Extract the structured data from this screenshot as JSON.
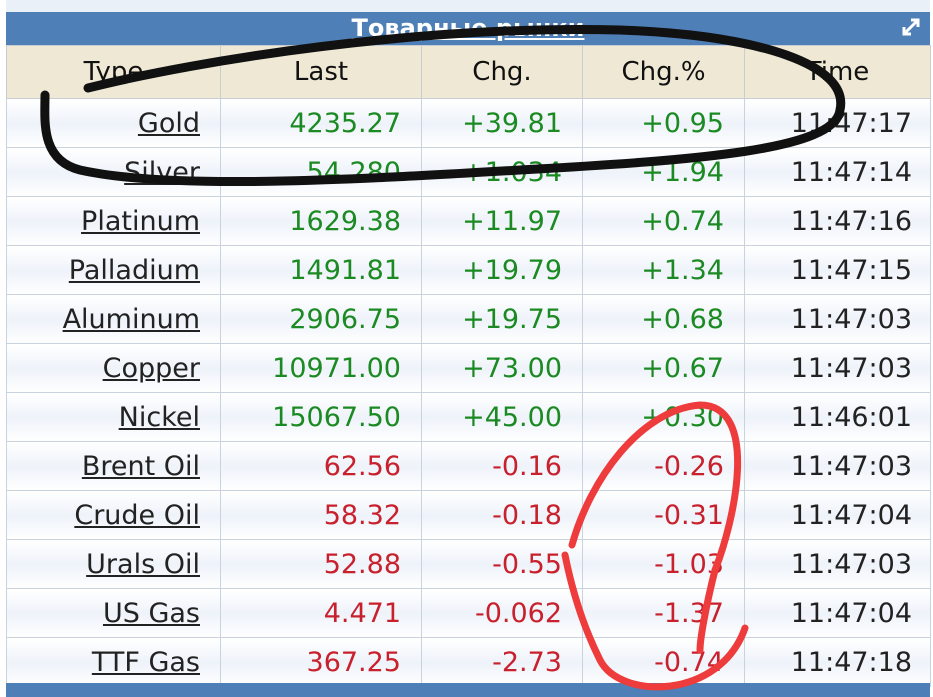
{
  "header": {
    "title": "Товарные рынки"
  },
  "table": {
    "columns": [
      "Type",
      "Last",
      "Chg.",
      "Chg.%",
      "Time"
    ],
    "rows": [
      {
        "type": "Gold",
        "last": "4235.27",
        "chg": "+39.81",
        "chg_pct": "+0.95",
        "time": "11:47:17",
        "color": "#1b8a22"
      },
      {
        "type": "Silver",
        "last": "54.280",
        "chg": "+1.034",
        "chg_pct": "+1.94",
        "time": "11:47:14",
        "color": "#1b8a22"
      },
      {
        "type": "Platinum",
        "last": "1629.38",
        "chg": "+11.97",
        "chg_pct": "+0.74",
        "time": "11:47:16",
        "color": "#1b8a22"
      },
      {
        "type": "Palladium",
        "last": "1491.81",
        "chg": "+19.79",
        "chg_pct": "+1.34",
        "time": "11:47:15",
        "color": "#1b8a22"
      },
      {
        "type": "Aluminum",
        "last": "2906.75",
        "chg": "+19.75",
        "chg_pct": "+0.68",
        "time": "11:47:03",
        "color": "#1b8a22"
      },
      {
        "type": "Copper",
        "last": "10971.00",
        "chg": "+73.00",
        "chg_pct": "+0.67",
        "time": "11:47:03",
        "color": "#1b8a22"
      },
      {
        "type": "Nickel",
        "last": "15067.50",
        "chg": "+45.00",
        "chg_pct": "+0.30",
        "time": "11:46:01",
        "color": "#1b8a22"
      },
      {
        "type": "Brent Oil",
        "last": "62.56",
        "chg": "-0.16",
        "chg_pct": "-0.26",
        "time": "11:47:03",
        "color": "#c8202c"
      },
      {
        "type": "Crude Oil",
        "last": "58.32",
        "chg": "-0.18",
        "chg_pct": "-0.31",
        "time": "11:47:04",
        "color": "#c8202c"
      },
      {
        "type": "Urals Oil",
        "last": "52.88",
        "chg": "-0.55",
        "chg_pct": "-1.03",
        "time": "11:47:03",
        "color": "#c8202c"
      },
      {
        "type": "US Gas",
        "last": "4.471",
        "chg": "-0.062",
        "chg_pct": "-1.37",
        "time": "11:47:04",
        "color": "#c8202c"
      },
      {
        "type": "TTF Gas",
        "last": "367.25",
        "chg": "-2.73",
        "chg_pct": "-0.74",
        "time": "11:47:18",
        "color": "#c8202c"
      }
    ]
  }
}
